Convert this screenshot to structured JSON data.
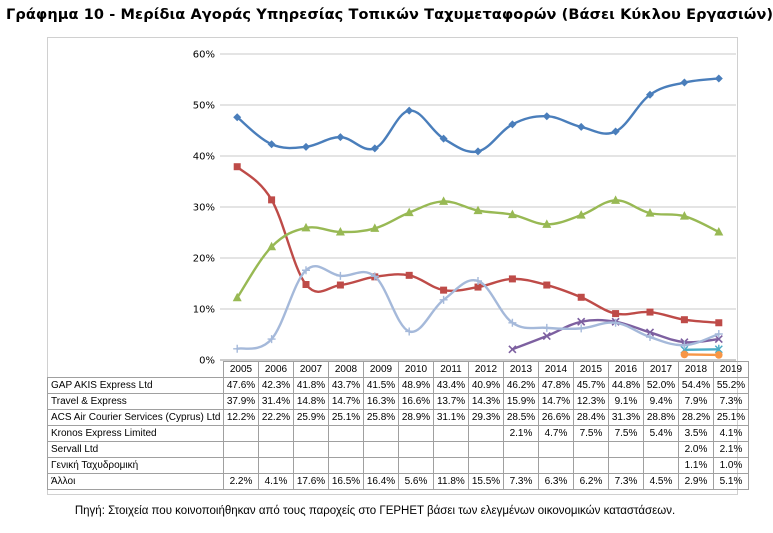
{
  "title": "Γράφημα 10 - Μερίδια Αγοράς Υπηρεσίας Τοπικών Ταχυμεταφορών (Βάσει Κύκλου Εργασιών)",
  "source": "Πηγή: Στοιχεία που κοινοποιήθηκαν από τους παροχείς στο ΓΕΡΗΕΤ βάσει των ελεγμένων οικονομικών καταστάσεων.",
  "chart_data": {
    "type": "line",
    "title": "Γράφημα 10 - Μερίδια Αγοράς Υπηρεσίας Τοπικών Ταχυμεταφορών (Βάσει Κύκλου Εργασιών)",
    "x": [
      "2005",
      "2006",
      "2007",
      "2008",
      "2009",
      "2010",
      "2011",
      "2012",
      "2013",
      "2014",
      "2015",
      "2016",
      "2017",
      "2018",
      "2019"
    ],
    "ylim": [
      0,
      60
    ],
    "yticks": [
      "0%",
      "10%",
      "20%",
      "30%",
      "40%",
      "50%",
      "60%"
    ],
    "grid": true,
    "legend": "data table below chart",
    "series": [
      {
        "name": "GAP AKIS Express Ltd",
        "color": "#4a7ebb",
        "marker": "diamond",
        "values": [
          47.6,
          42.3,
          41.8,
          43.7,
          41.5,
          48.9,
          43.4,
          40.9,
          46.2,
          47.8,
          45.7,
          44.8,
          52.0,
          54.4,
          55.2
        ],
        "labels": [
          "47.6%",
          "42.3%",
          "41.8%",
          "43.7%",
          "41.5%",
          "48.9%",
          "43.4%",
          "40.9%",
          "46.2%",
          "47.8%",
          "45.7%",
          "44.8%",
          "52.0%",
          "54.4%",
          "55.2%"
        ]
      },
      {
        "name": "Travel & Express",
        "color": "#be4b48",
        "marker": "square",
        "values": [
          37.9,
          31.4,
          14.8,
          14.7,
          16.3,
          16.6,
          13.7,
          14.3,
          15.9,
          14.7,
          12.3,
          9.1,
          9.4,
          7.9,
          7.3
        ],
        "labels": [
          "37.9%",
          "31.4%",
          "14.8%",
          "14.7%",
          "16.3%",
          "16.6%",
          "13.7%",
          "14.3%",
          "15.9%",
          "14.7%",
          "12.3%",
          "9.1%",
          "9.4%",
          "7.9%",
          "7.3%"
        ]
      },
      {
        "name": "ACS Air Courier Services (Cyprus) Ltd",
        "color": "#98b954",
        "marker": "triangle",
        "values": [
          12.2,
          22.2,
          25.9,
          25.1,
          25.8,
          28.9,
          31.1,
          29.3,
          28.5,
          26.6,
          28.4,
          31.3,
          28.8,
          28.2,
          25.1
        ],
        "labels": [
          "12.2%",
          "22.2%",
          "25.9%",
          "25.1%",
          "25.8%",
          "28.9%",
          "31.1%",
          "29.3%",
          "28.5%",
          "26.6%",
          "28.4%",
          "31.3%",
          "28.8%",
          "28.2%",
          "25.1%"
        ]
      },
      {
        "name": "Kronos Express Limited",
        "color": "#7d60a0",
        "marker": "x",
        "values": [
          null,
          null,
          null,
          null,
          null,
          null,
          null,
          null,
          2.1,
          4.7,
          7.5,
          7.5,
          5.4,
          3.5,
          4.1
        ],
        "labels": [
          "",
          "",
          "",
          "",
          "",
          "",
          "",
          "",
          "2.1%",
          "4.7%",
          "7.5%",
          "7.5%",
          "5.4%",
          "3.5%",
          "4.1%"
        ]
      },
      {
        "name": "Servall Ltd",
        "color": "#4aacc6",
        "marker": "star",
        "values": [
          null,
          null,
          null,
          null,
          null,
          null,
          null,
          null,
          null,
          null,
          null,
          null,
          null,
          2.0,
          2.1
        ],
        "labels": [
          "",
          "",
          "",
          "",
          "",
          "",
          "",
          "",
          "",
          "",
          "",
          "",
          "",
          "2.0%",
          "2.1%"
        ]
      },
      {
        "name": "Γενική Ταχυδρομική",
        "color": "#f79646",
        "marker": "circle",
        "values": [
          null,
          null,
          null,
          null,
          null,
          null,
          null,
          null,
          null,
          null,
          null,
          null,
          null,
          1.1,
          1.0
        ],
        "labels": [
          "",
          "",
          "",
          "",
          "",
          "",
          "",
          "",
          "",
          "",
          "",
          "",
          "",
          "1.1%",
          "1.0%"
        ]
      },
      {
        "name": "Άλλοι",
        "color": "#a5b9da",
        "marker": "plus",
        "values": [
          2.2,
          4.1,
          17.6,
          16.5,
          16.4,
          5.6,
          11.8,
          15.5,
          7.3,
          6.3,
          6.2,
          7.3,
          4.5,
          2.9,
          5.1
        ],
        "labels": [
          "2.2%",
          "4.1%",
          "17.6%",
          "16.5%",
          "16.4%",
          "5.6%",
          "11.8%",
          "15.5%",
          "7.3%",
          "6.3%",
          "6.2%",
          "7.3%",
          "4.5%",
          "2.9%",
          "5.1%"
        ]
      }
    ]
  }
}
